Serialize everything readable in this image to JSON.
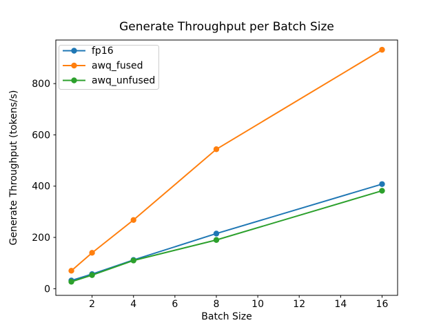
{
  "chart_data": {
    "type": "line",
    "title": "Generate Throughput per Batch Size",
    "xlabel": "Batch Size",
    "ylabel": "Generate Throughput (tokens/s)",
    "x": [
      1,
      2,
      4,
      8,
      16
    ],
    "series": [
      {
        "name": "fp16",
        "color": "#1f77b4",
        "values": [
          32,
          57,
          112,
          215,
          408
        ]
      },
      {
        "name": "awq_fused",
        "color": "#ff7f0e",
        "values": [
          70,
          140,
          268,
          544,
          932
        ]
      },
      {
        "name": "awq_unfused",
        "color": "#2ca02c",
        "values": [
          27,
          53,
          110,
          190,
          382
        ]
      }
    ],
    "xticks": [
      2,
      4,
      6,
      8,
      10,
      12,
      14,
      16
    ],
    "yticks": [
      0,
      200,
      400,
      600,
      800
    ],
    "xlim": [
      0.25,
      16.75
    ],
    "ylim": [
      -26,
      970
    ],
    "grid": false,
    "legend_position": "upper-left",
    "marker": "o",
    "colors": {
      "background": "#ffffff",
      "axes": "#000000",
      "legend_border": "#cccccc"
    }
  }
}
